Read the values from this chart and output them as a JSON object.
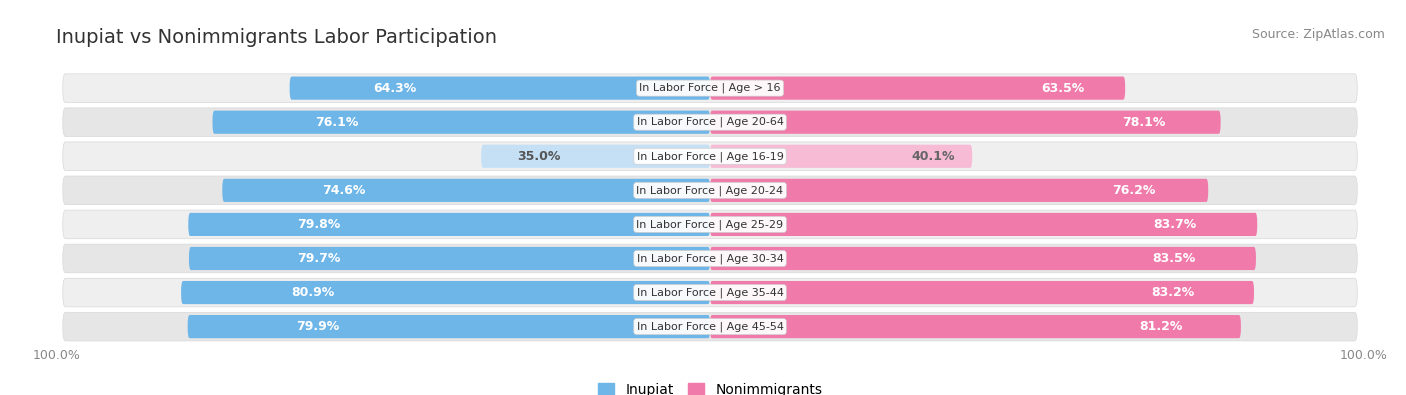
{
  "title": "Inupiat vs Nonimmigrants Labor Participation",
  "source": "Source: ZipAtlas.com",
  "categories": [
    "In Labor Force | Age > 16",
    "In Labor Force | Age 20-64",
    "In Labor Force | Age 16-19",
    "In Labor Force | Age 20-24",
    "In Labor Force | Age 25-29",
    "In Labor Force | Age 30-34",
    "In Labor Force | Age 35-44",
    "In Labor Force | Age 45-54"
  ],
  "inupiat_values": [
    64.3,
    76.1,
    35.0,
    74.6,
    79.8,
    79.7,
    80.9,
    79.9
  ],
  "nonimmigrant_values": [
    63.5,
    78.1,
    40.1,
    76.2,
    83.7,
    83.5,
    83.2,
    81.2
  ],
  "inupiat_color_full": "#6eb5e8",
  "inupiat_color_light": "#c5dff5",
  "nonimmigrant_color_full": "#f07aaa",
  "nonimmigrant_color_light": "#f7bbd5",
  "row_bg_color": "#f0f0f0",
  "row_bg_alt_color": "#e8e8e8",
  "max_value": 100.0,
  "title_fontsize": 14,
  "source_fontsize": 9,
  "bar_label_fontsize": 9,
  "category_label_fontsize": 8,
  "legend_fontsize": 10,
  "axis_label_fontsize": 9
}
